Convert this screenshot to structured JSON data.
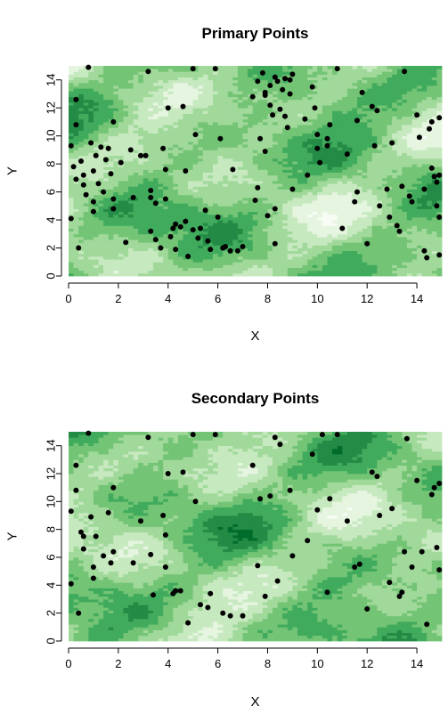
{
  "palette": [
    "#f7fcf5",
    "#e5f5e0",
    "#c7e9c0",
    "#a1d99b",
    "#74c476",
    "#41ab5d",
    "#238b45",
    "#006d2c"
  ],
  "point_color": "#000000",
  "chart_data": [
    {
      "type": "scatter",
      "title": "Primary Points",
      "xlabel": "X",
      "ylabel": "Y",
      "xlim": [
        0,
        15
      ],
      "ylim": [
        0,
        15
      ],
      "xticks": [
        "0",
        "2",
        "4",
        "6",
        "8",
        "10",
        "12",
        "14"
      ],
      "yticks": [
        "0",
        "2",
        "4",
        "6",
        "8",
        "10",
        "12",
        "14"
      ],
      "background": "green raster field",
      "points": [
        [
          0.1,
          9.3
        ],
        [
          0.2,
          7.8
        ],
        [
          0.3,
          6.9
        ],
        [
          0.1,
          4.1
        ],
        [
          0.4,
          2.0
        ],
        [
          0.3,
          12.6
        ],
        [
          0.3,
          10.8
        ],
        [
          0.5,
          8.2
        ],
        [
          0.6,
          7.2
        ],
        [
          0.6,
          6.5
        ],
        [
          0.7,
          5.8
        ],
        [
          0.8,
          14.9
        ],
        [
          0.9,
          9.5
        ],
        [
          1.0,
          7.5
        ],
        [
          1.0,
          5.3
        ],
        [
          1.0,
          4.6
        ],
        [
          1.1,
          8.6
        ],
        [
          1.2,
          6.6
        ],
        [
          1.3,
          9.2
        ],
        [
          1.4,
          6.0
        ],
        [
          1.5,
          8.3
        ],
        [
          1.6,
          9.1
        ],
        [
          1.7,
          7.3
        ],
        [
          1.8,
          11.0
        ],
        [
          1.8,
          5.5
        ],
        [
          1.8,
          4.8
        ],
        [
          2.1,
          8.1
        ],
        [
          2.3,
          2.4
        ],
        [
          2.5,
          9.0
        ],
        [
          2.6,
          5.6
        ],
        [
          2.9,
          8.6
        ],
        [
          3.1,
          8.6
        ],
        [
          3.2,
          14.6
        ],
        [
          3.3,
          6.1
        ],
        [
          3.3,
          5.6
        ],
        [
          3.3,
          3.2
        ],
        [
          3.5,
          2.6
        ],
        [
          3.5,
          5.2
        ],
        [
          3.7,
          2.0
        ],
        [
          3.8,
          9.1
        ],
        [
          3.9,
          7.6
        ],
        [
          3.9,
          5.5
        ],
        [
          4.0,
          12.0
        ],
        [
          4.1,
          2.8
        ],
        [
          4.2,
          3.4
        ],
        [
          4.3,
          3.7
        ],
        [
          4.3,
          1.9
        ],
        [
          4.5,
          3.5
        ],
        [
          4.6,
          12.1
        ],
        [
          4.7,
          7.5
        ],
        [
          4.7,
          3.9
        ],
        [
          4.8,
          1.4
        ],
        [
          5.0,
          3.3
        ],
        [
          5.0,
          14.8
        ],
        [
          5.1,
          10.1
        ],
        [
          5.2,
          2.7
        ],
        [
          5.3,
          3.4
        ],
        [
          5.5,
          4.7
        ],
        [
          5.7,
          1.9
        ],
        [
          5.9,
          14.8
        ],
        [
          5.6,
          2.5
        ],
        [
          6.0,
          4.2
        ],
        [
          6.1,
          9.8
        ],
        [
          6.2,
          2.0
        ],
        [
          6.3,
          2.1
        ],
        [
          6.5,
          1.8
        ],
        [
          6.6,
          7.6
        ],
        [
          6.8,
          1.8
        ],
        [
          7.0,
          2.1
        ],
        [
          7.4,
          12.8
        ],
        [
          7.5,
          5.4
        ],
        [
          7.6,
          6.3
        ],
        [
          7.7,
          9.8
        ],
        [
          7.6,
          13.9
        ],
        [
          7.8,
          14.5
        ],
        [
          7.9,
          12.9
        ],
        [
          7.9,
          8.9
        ],
        [
          7.9,
          13.1
        ],
        [
          8.0,
          4.3
        ],
        [
          8.1,
          12.2
        ],
        [
          8.1,
          13.6
        ],
        [
          8.2,
          11.5
        ],
        [
          8.3,
          14.2
        ],
        [
          8.3,
          4.8
        ],
        [
          8.3,
          2.3
        ],
        [
          8.4,
          13.9
        ],
        [
          8.5,
          11.9
        ],
        [
          8.6,
          13.3
        ],
        [
          8.7,
          11.4
        ],
        [
          8.7,
          14.1
        ],
        [
          8.8,
          10.6
        ],
        [
          8.9,
          13.0
        ],
        [
          8.9,
          14.0
        ],
        [
          9.0,
          14.4
        ],
        [
          9.0,
          6.2
        ],
        [
          9.5,
          11.2
        ],
        [
          9.6,
          7.2
        ],
        [
          9.9,
          12.0
        ],
        [
          9.8,
          13.5
        ],
        [
          10.0,
          10.1
        ],
        [
          10.0,
          9.1
        ],
        [
          10.1,
          8.1
        ],
        [
          10.4,
          9.8
        ],
        [
          10.4,
          9.3
        ],
        [
          10.5,
          10.8
        ],
        [
          10.8,
          14.8
        ],
        [
          11.0,
          3.4
        ],
        [
          11.2,
          8.7
        ],
        [
          11.5,
          5.3
        ],
        [
          11.6,
          11.1
        ],
        [
          11.6,
          6.0
        ],
        [
          11.8,
          13.1
        ],
        [
          12.0,
          2.3
        ],
        [
          12.2,
          12.1
        ],
        [
          12.3,
          9.3
        ],
        [
          12.4,
          11.8
        ],
        [
          12.5,
          5.0
        ],
        [
          12.9,
          4.2
        ],
        [
          12.8,
          6.2
        ],
        [
          13.0,
          9.5
        ],
        [
          13.2,
          3.6
        ],
        [
          13.3,
          3.2
        ],
        [
          13.4,
          6.4
        ],
        [
          13.5,
          14.6
        ],
        [
          13.7,
          5.7
        ],
        [
          13.8,
          5.3
        ],
        [
          14.0,
          11.5
        ],
        [
          14.1,
          9.9
        ],
        [
          14.3,
          6.2
        ],
        [
          14.3,
          1.8
        ],
        [
          14.4,
          1.3
        ],
        [
          14.5,
          10.5
        ],
        [
          14.6,
          11.0
        ],
        [
          14.6,
          7.7
        ],
        [
          14.7,
          7.1
        ],
        [
          14.8,
          6.7
        ],
        [
          14.8,
          5.0
        ],
        [
          14.9,
          11.3
        ],
        [
          14.9,
          7.2
        ],
        [
          14.9,
          4.2
        ],
        [
          14.9,
          1.5
        ]
      ]
    },
    {
      "type": "scatter",
      "title": "Secondary Points",
      "xlabel": "X",
      "ylabel": "Y",
      "xlim": [
        0,
        15
      ],
      "ylim": [
        0,
        15
      ],
      "xticks": [
        "0",
        "2",
        "4",
        "6",
        "8",
        "10",
        "12",
        "14"
      ],
      "yticks": [
        "0",
        "2",
        "4",
        "6",
        "8",
        "10",
        "12",
        "14"
      ],
      "background": "green raster field",
      "points": [
        [
          0.1,
          9.3
        ],
        [
          0.3,
          12.6
        ],
        [
          0.3,
          10.8
        ],
        [
          0.1,
          4.1
        ],
        [
          0.4,
          2.0
        ],
        [
          0.5,
          7.8
        ],
        [
          0.6,
          7.5
        ],
        [
          0.6,
          6.6
        ],
        [
          0.8,
          14.9
        ],
        [
          0.9,
          8.9
        ],
        [
          1.0,
          5.3
        ],
        [
          1.0,
          4.5
        ],
        [
          1.1,
          7.5
        ],
        [
          1.4,
          6.1
        ],
        [
          1.6,
          9.2
        ],
        [
          1.7,
          5.6
        ],
        [
          1.8,
          11.0
        ],
        [
          1.8,
          6.4
        ],
        [
          2.6,
          5.6
        ],
        [
          2.9,
          8.6
        ],
        [
          3.2,
          14.6
        ],
        [
          3.3,
          6.2
        ],
        [
          3.4,
          3.3
        ],
        [
          3.8,
          9.0
        ],
        [
          3.9,
          7.6
        ],
        [
          3.9,
          5.3
        ],
        [
          4.0,
          12.0
        ],
        [
          4.2,
          3.4
        ],
        [
          4.3,
          3.6
        ],
        [
          4.5,
          3.6
        ],
        [
          4.6,
          12.1
        ],
        [
          4.8,
          1.3
        ],
        [
          5.0,
          14.8
        ],
        [
          5.1,
          10.0
        ],
        [
          5.3,
          2.6
        ],
        [
          5.6,
          2.4
        ],
        [
          5.7,
          3.4
        ],
        [
          5.9,
          14.8
        ],
        [
          6.2,
          2.0
        ],
        [
          6.5,
          1.8
        ],
        [
          7.0,
          1.8
        ],
        [
          7.4,
          12.6
        ],
        [
          7.6,
          5.4
        ],
        [
          7.7,
          10.2
        ],
        [
          7.9,
          3.2
        ],
        [
          8.1,
          10.4
        ],
        [
          8.3,
          14.6
        ],
        [
          8.4,
          4.3
        ],
        [
          8.5,
          14.1
        ],
        [
          8.9,
          10.8
        ],
        [
          9.0,
          6.1
        ],
        [
          9.6,
          7.2
        ],
        [
          9.8,
          13.4
        ],
        [
          10.0,
          9.4
        ],
        [
          10.2,
          14.8
        ],
        [
          10.4,
          3.5
        ],
        [
          10.5,
          10.2
        ],
        [
          10.8,
          14.8
        ],
        [
          11.2,
          8.6
        ],
        [
          11.5,
          5.3
        ],
        [
          11.7,
          5.5
        ],
        [
          12.0,
          2.3
        ],
        [
          12.2,
          12.1
        ],
        [
          12.4,
          11.8
        ],
        [
          12.5,
          9.0
        ],
        [
          12.9,
          4.2
        ],
        [
          13.0,
          9.5
        ],
        [
          13.3,
          3.2
        ],
        [
          13.4,
          3.5
        ],
        [
          13.5,
          6.4
        ],
        [
          13.6,
          14.5
        ],
        [
          13.8,
          5.3
        ],
        [
          14.0,
          11.5
        ],
        [
          14.2,
          6.4
        ],
        [
          14.4,
          1.2
        ],
        [
          14.6,
          10.5
        ],
        [
          14.7,
          11.0
        ],
        [
          14.8,
          6.7
        ],
        [
          14.9,
          11.3
        ],
        [
          14.9,
          5.1
        ]
      ]
    }
  ]
}
